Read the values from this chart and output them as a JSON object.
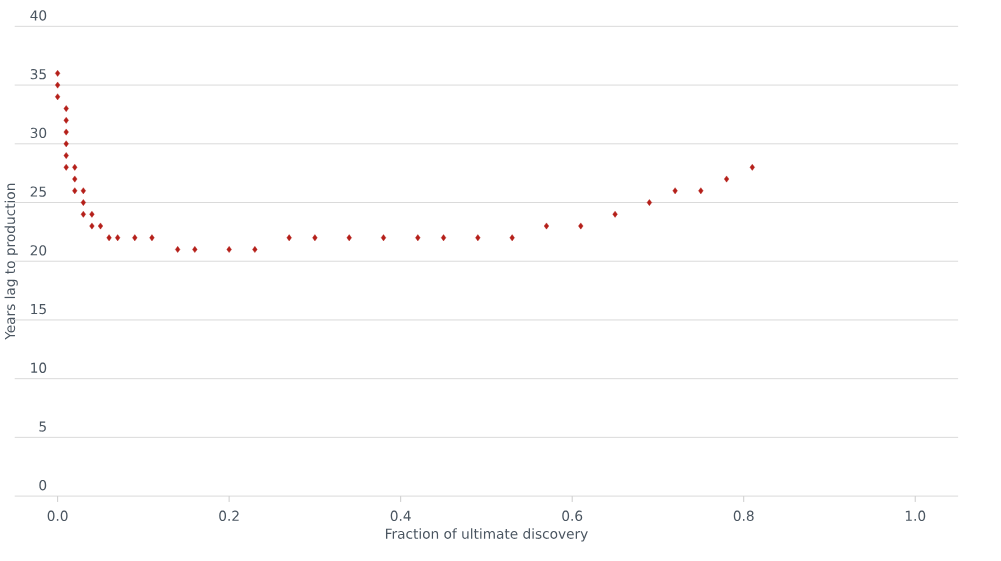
{
  "chart_data": {
    "type": "scatter",
    "xlabel": "Fraction of ultimate discovery",
    "ylabel": "Years lag to production",
    "x": [
      0,
      0,
      0,
      0.01,
      0.01,
      0.01,
      0.01,
      0.01,
      0.01,
      0.02,
      0.02,
      0.02,
      0.03,
      0.03,
      0.03,
      0.04,
      0.04,
      0.05,
      0.06,
      0.07,
      0.09,
      0.11,
      0.14,
      0.16,
      0.2,
      0.23,
      0.27,
      0.3,
      0.34,
      0.38,
      0.42,
      0.45,
      0.49,
      0.53,
      0.57,
      0.61,
      0.65,
      0.69,
      0.72,
      0.75,
      0.78,
      0.81
    ],
    "values": [
      36,
      35,
      34,
      33,
      32,
      31,
      30,
      29,
      28,
      28,
      27,
      26,
      26,
      25,
      24,
      24,
      23,
      23,
      22,
      22,
      22,
      22,
      21,
      21,
      21,
      21,
      22,
      22,
      22,
      22,
      22,
      22,
      22,
      22,
      23,
      23,
      24,
      25,
      26,
      26,
      27,
      28
    ],
    "color": "#b5201a",
    "marker": "diamond",
    "grid": "y",
    "xlim": [
      -0.05,
      1.05
    ],
    "ylim": [
      0,
      40
    ],
    "xticks": [
      {
        "value": 0,
        "label": "0.0"
      },
      0.2,
      0.4,
      0.6,
      0.8,
      {
        "value": 1,
        "label": "1.0"
      }
    ],
    "yticks": [
      0,
      5,
      10,
      15,
      20,
      25,
      30,
      35,
      40
    ]
  }
}
